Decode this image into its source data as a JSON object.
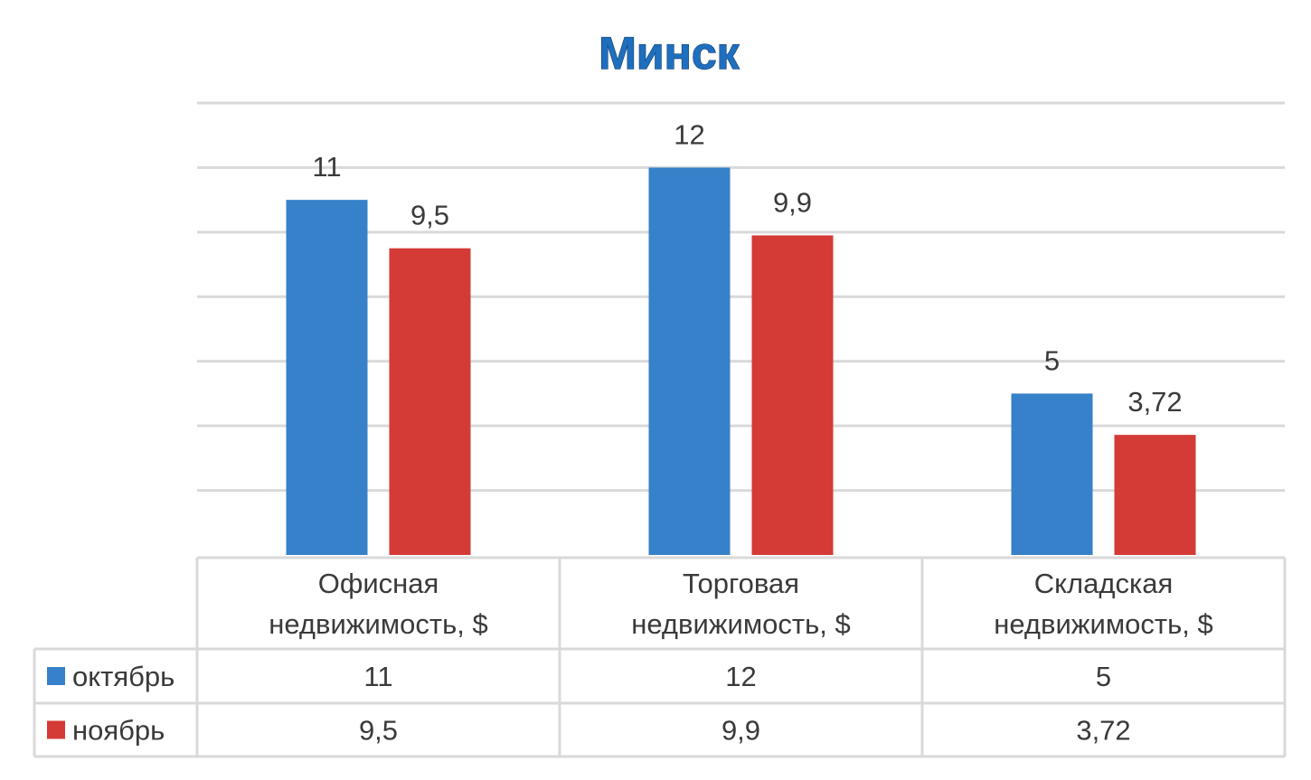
{
  "chart_data": {
    "type": "bar",
    "title": "Минск",
    "categories": [
      [
        "Офисная",
        "недвижимость, $"
      ],
      [
        "Торговая",
        "недвижимость, $"
      ],
      [
        "Складская",
        "недвижимость, $"
      ]
    ],
    "series": [
      {
        "name": "октябрь",
        "color": "#3681c9",
        "values": [
          11,
          12,
          5
        ],
        "labels": [
          "11",
          "12",
          "5"
        ]
      },
      {
        "name": "ноябрь",
        "color": "#d43a36",
        "values": [
          9.5,
          9.9,
          3.72
        ],
        "labels": [
          "9,5",
          "9,9",
          "3,72"
        ]
      }
    ],
    "ylim": [
      0,
      14
    ],
    "grid": true,
    "gridlines": [
      2,
      4,
      6,
      8,
      10,
      12,
      14
    ],
    "data_table": true
  }
}
